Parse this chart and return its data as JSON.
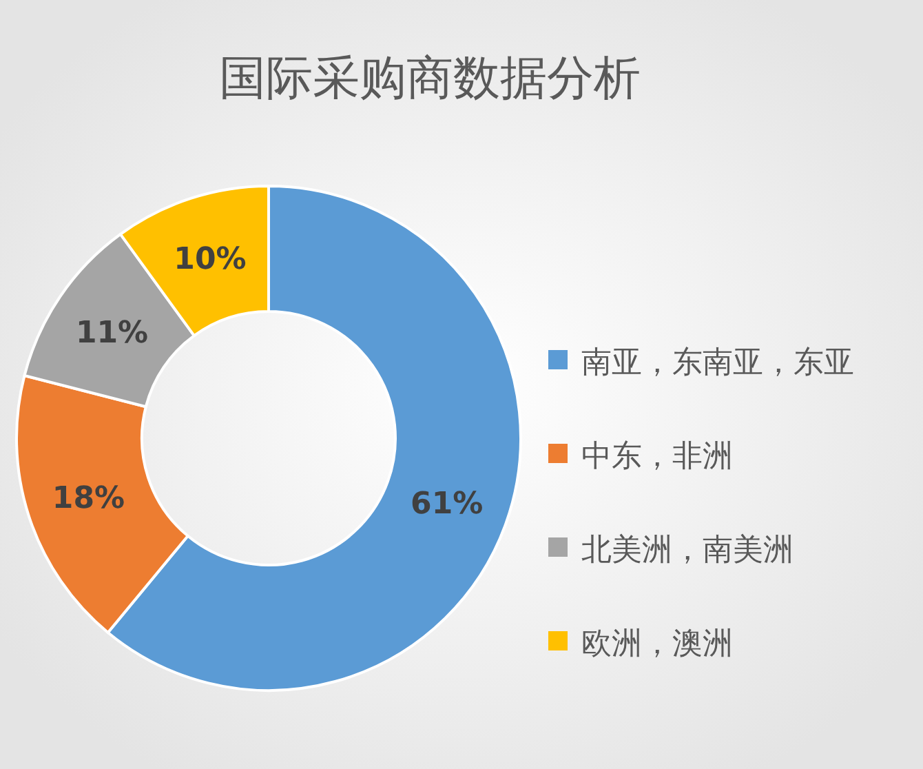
{
  "chart_data": {
    "type": "donut",
    "title": "国际采购商数据分析",
    "categories": [
      "南亚，东南亚，东亚",
      "中东，非洲",
      "北美洲，南美洲",
      "欧洲，澳洲"
    ],
    "values": [
      61,
      18,
      11,
      10
    ],
    "colors": [
      "#5b9bd5",
      "#ed7d31",
      "#a5a5a5",
      "#ffc000"
    ],
    "value_labels": [
      "61%",
      "18%",
      "11%",
      "10%"
    ],
    "legend": "right"
  }
}
